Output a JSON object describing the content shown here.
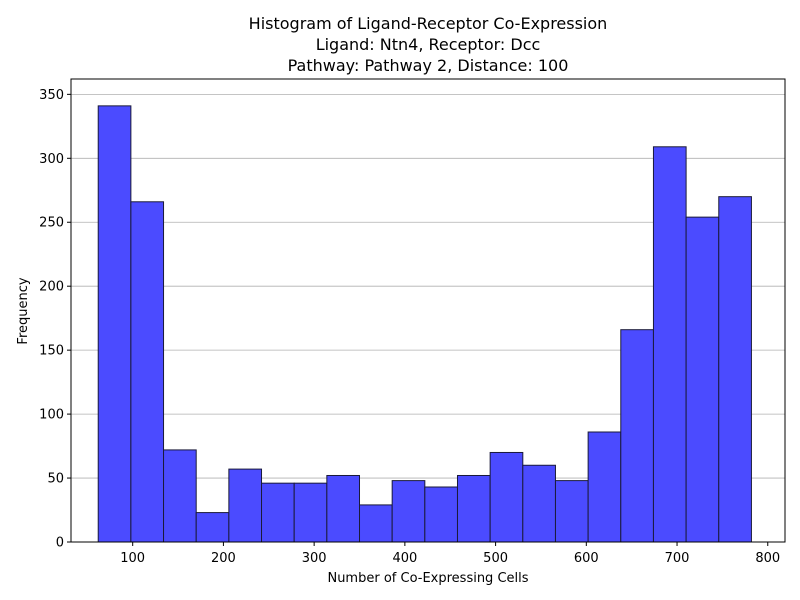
{
  "chart_data": {
    "type": "bar",
    "title_lines": [
      "Histogram of Ligand-Receptor Co-Expression",
      "Ligand: Ntn4, Receptor: Dcc",
      "Pathway: Pathway 2, Distance: 100"
    ],
    "xlabel": "Number of Co-Expressing Cells",
    "ylabel": "Frequency",
    "xlim": [
      32,
      819
    ],
    "ylim": [
      0,
      362
    ],
    "xticks": [
      100,
      200,
      300,
      400,
      500,
      600,
      700,
      800
    ],
    "yticks": [
      0,
      50,
      100,
      150,
      200,
      250,
      300,
      350
    ],
    "grid": "y-axis only",
    "bin_edges": [
      62,
      98,
      134,
      170,
      206,
      242,
      278,
      314,
      350,
      386,
      422,
      458,
      494,
      530,
      566,
      602,
      638,
      674,
      710,
      746,
      782
    ],
    "values": [
      341,
      266,
      72,
      23,
      57,
      46,
      46,
      52,
      29,
      48,
      43,
      52,
      70,
      60,
      48,
      86,
      166,
      309,
      254,
      270
    ],
    "bar_color": "#4b4bff",
    "edge_color": "#1a1a3a"
  }
}
